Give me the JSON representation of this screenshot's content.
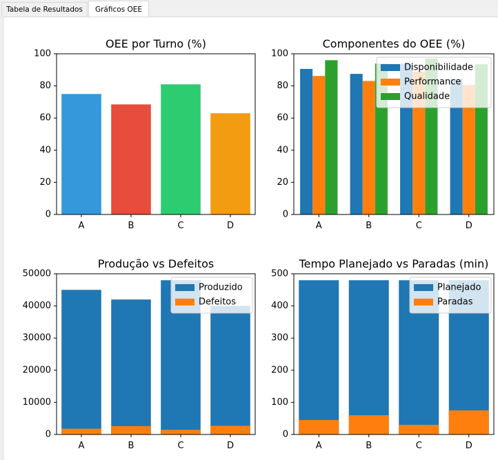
{
  "tabs": [
    {
      "label": "Tabela de Resultados",
      "active": false
    },
    {
      "label": "Gráficos OEE",
      "active": true
    }
  ],
  "chart_data": [
    {
      "type": "bar",
      "title": "OEE por Turno (%)",
      "categories": [
        "A",
        "B",
        "C",
        "D"
      ],
      "values": [
        75,
        68.5,
        81,
        63
      ],
      "colors": [
        "#3498db",
        "#e74c3c",
        "#2ecc71",
        "#f39c12"
      ],
      "ylim": [
        0,
        100
      ],
      "yticks": [
        0,
        20,
        40,
        60,
        80,
        100
      ],
      "xlabel": "",
      "ylabel": ""
    },
    {
      "type": "bar",
      "title": "Componentes do OEE (%)",
      "categories": [
        "A",
        "B",
        "C",
        "D"
      ],
      "series": [
        {
          "name": "Disponibilidade",
          "color": "#1f77b4",
          "values": [
            90.6,
            87.5,
            93.8,
            84.4
          ]
        },
        {
          "name": "Performance",
          "color": "#ff7f0e",
          "values": [
            86.2,
            83.1,
            88.9,
            80.6
          ]
        },
        {
          "name": "Qualidade",
          "color": "#2ca02c",
          "values": [
            96.0,
            93.9,
            97.0,
            93.5
          ]
        }
      ],
      "ylim": [
        0,
        100
      ],
      "yticks": [
        0,
        20,
        40,
        60,
        80,
        100
      ],
      "legend": "top-right",
      "xlabel": "",
      "ylabel": ""
    },
    {
      "type": "bar",
      "title": "Produção vs Defeitos",
      "categories": [
        "A",
        "B",
        "C",
        "D"
      ],
      "stacked": false,
      "series": [
        {
          "name": "Produzido",
          "color": "#1f77b4",
          "values": [
            45000,
            42000,
            48000,
            40000
          ]
        },
        {
          "name": "Defeitos",
          "color": "#ff7f0e",
          "values": [
            1800,
            2600,
            1450,
            2700
          ]
        }
      ],
      "ylim": [
        0,
        50000
      ],
      "yticks": [
        0,
        10000,
        20000,
        30000,
        40000,
        50000
      ],
      "legend": "top-right",
      "xlabel": "",
      "ylabel": ""
    },
    {
      "type": "bar",
      "title": "Tempo Planejado vs Paradas (min)",
      "categories": [
        "A",
        "B",
        "C",
        "D"
      ],
      "stacked": false,
      "series": [
        {
          "name": "Planejado",
          "color": "#1f77b4",
          "values": [
            480,
            480,
            480,
            480
          ]
        },
        {
          "name": "Paradas",
          "color": "#ff7f0e",
          "values": [
            45,
            60,
            30,
            75
          ]
        }
      ],
      "ylim": [
        0,
        500
      ],
      "yticks": [
        0,
        100,
        200,
        300,
        400,
        500
      ],
      "legend": "top-right",
      "xlabel": "",
      "ylabel": ""
    }
  ]
}
